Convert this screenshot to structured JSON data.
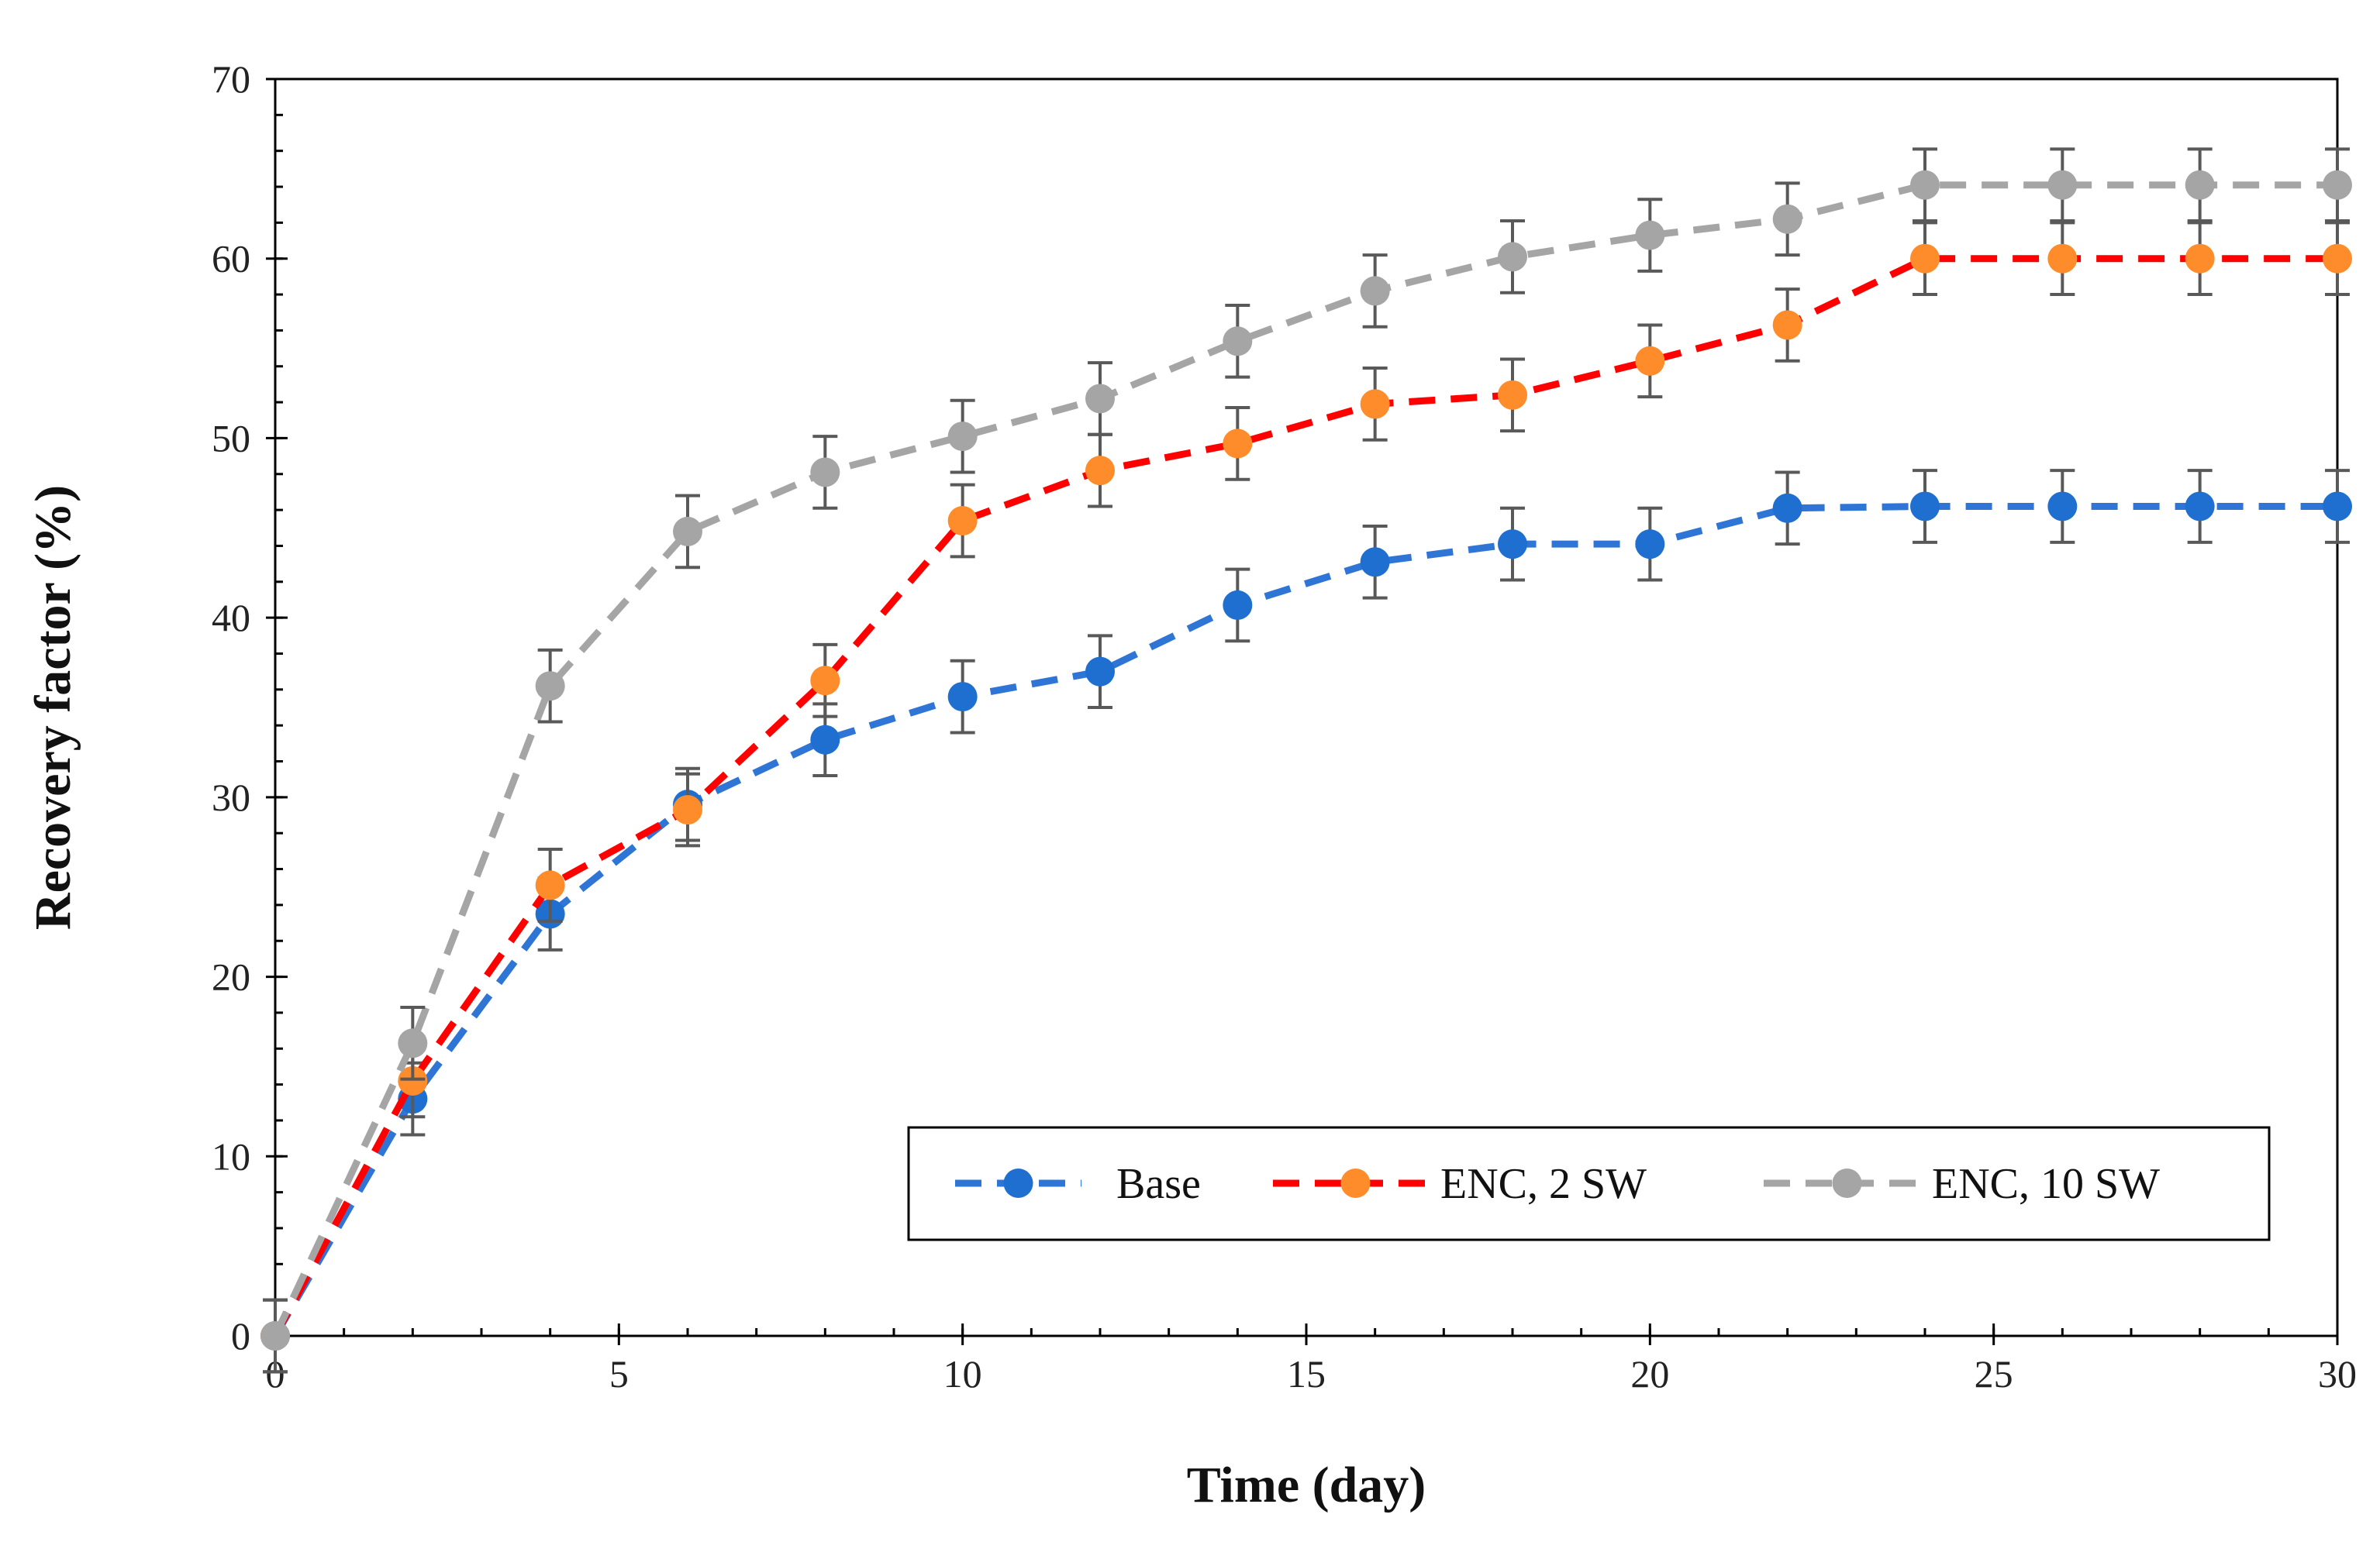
{
  "chart_data": {
    "type": "line",
    "xlabel": "Time (day)",
    "ylabel": "Recovery factor (%)",
    "xlim": [
      0,
      30
    ],
    "ylim": [
      0,
      70
    ],
    "x_ticks": [
      0,
      5,
      10,
      15,
      20,
      25,
      30
    ],
    "y_ticks": [
      0,
      10,
      20,
      30,
      40,
      50,
      60,
      70
    ],
    "x_minor_step": 1,
    "y_minor_step": 2,
    "grid": false,
    "legend_position": "bottom-right",
    "error_bars": "±2",
    "error_bar_color": "#595959",
    "x": [
      0,
      2,
      4,
      6,
      8,
      10,
      12,
      14,
      16,
      18,
      20,
      22,
      24,
      26,
      28,
      30
    ],
    "series": [
      {
        "name": "Base",
        "line_color": "#2e75d6",
        "marker_color": "#1f6fd0",
        "values": [
          0,
          13.2,
          23.5,
          29.6,
          33.2,
          35.6,
          37.0,
          40.7,
          43.1,
          44.1,
          44.1,
          46.1,
          46.2,
          46.2,
          46.2,
          46.2
        ],
        "errors": [
          2,
          2,
          2,
          2,
          2,
          2,
          2,
          2,
          2,
          2,
          2,
          2,
          2,
          2,
          2,
          2
        ]
      },
      {
        "name": "ENC, 2 SW",
        "line_color": "#ff0000",
        "marker_color": "#ff8c2a",
        "values": [
          0,
          14.2,
          25.1,
          29.3,
          36.5,
          45.4,
          48.2,
          49.7,
          51.9,
          52.4,
          54.3,
          56.3,
          60.0,
          60.0,
          60.0,
          60.0
        ],
        "errors": [
          2,
          2,
          2,
          2,
          2,
          2,
          2,
          2,
          2,
          2,
          2,
          2,
          2,
          2,
          2,
          2
        ]
      },
      {
        "name": "ENC, 10 SW",
        "line_color": "#a5a5a5",
        "marker_color": "#a5a5a5",
        "values": [
          0,
          16.3,
          36.2,
          44.8,
          48.1,
          50.1,
          52.2,
          55.4,
          58.2,
          60.1,
          61.3,
          62.2,
          64.1,
          64.1,
          64.1,
          64.1
        ],
        "errors": [
          2,
          2,
          2,
          2,
          2,
          2,
          2,
          2,
          2,
          2,
          2,
          2,
          2,
          2,
          2,
          2
        ]
      }
    ]
  }
}
